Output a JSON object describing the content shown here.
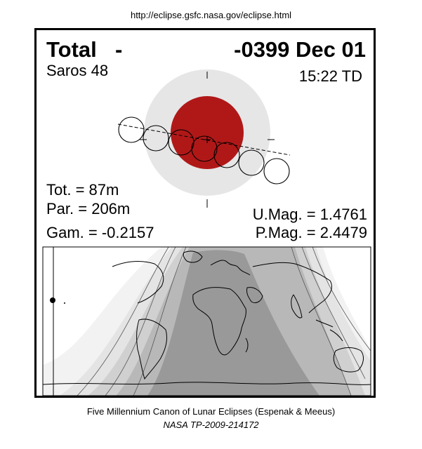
{
  "header": {
    "url": "http://eclipse.gsfc.nasa.gov/eclipse.html"
  },
  "eclipse": {
    "type": "Total",
    "type_dash": "-",
    "date": "-0399 Dec 01",
    "saros": "Saros  48",
    "time": "15:22 TD",
    "tot": "Tot. =  87m",
    "par": "Par. = 206m",
    "gam": "Gam. = -0.2157",
    "umag": "U.Mag. = 1.4761",
    "pmag": "P.Mag. = 2.4479"
  },
  "colors": {
    "penumbra": "#e6e6e6",
    "umbra": "#b01818",
    "night": "#999999",
    "map_band_1": "#b8b8b8",
    "map_band_2": "#d0d0d0",
    "map_band_3": "#e4e4e4",
    "map_band_4": "#f2f2f2"
  },
  "footer": {
    "line1": "Five Millennium Canon of Lunar Eclipses (Espenak & Meeus)",
    "line2": "NASA TP-2009-214172"
  }
}
